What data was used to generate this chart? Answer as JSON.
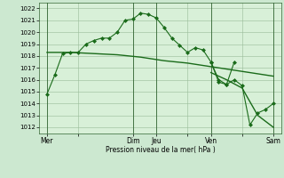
{
  "background_color": "#cce8d0",
  "plot_bg": "#d8f0d8",
  "grid_color": "#99bb99",
  "line_color": "#1a6b1a",
  "marker_color": "#1a6b1a",
  "ylim": [
    1011.5,
    1022.5
  ],
  "yticks": [
    1012,
    1013,
    1014,
    1015,
    1016,
    1017,
    1018,
    1019,
    1020,
    1021,
    1022
  ],
  "xlabel": "Pression niveau de la mer( hPa )",
  "day_labels": [
    "Mer",
    "",
    "Dim",
    "Jeu",
    "",
    "Ven",
    "",
    "Sam"
  ],
  "day_positions": [
    0.5,
    2.5,
    6.0,
    7.5,
    9.5,
    11.0,
    13.0,
    15.0
  ],
  "vline_positions": [
    0.5,
    6.0,
    7.5,
    11.0,
    15.0
  ],
  "series1_x": [
    0.5,
    1.0,
    1.5,
    2.0,
    2.5,
    3.0,
    3.5,
    4.0,
    4.5,
    5.0,
    5.5,
    6.0,
    6.5,
    7.0,
    7.5,
    8.0,
    8.5,
    9.0,
    9.5,
    10.0,
    10.5,
    11.0,
    11.5,
    12.0,
    12.5
  ],
  "series1_y": [
    1014.8,
    1016.4,
    1018.2,
    1018.3,
    1018.3,
    1019.0,
    1019.3,
    1019.5,
    1019.5,
    1020.0,
    1021.0,
    1021.1,
    1021.6,
    1021.5,
    1021.2,
    1020.4,
    1019.5,
    1018.9,
    1018.3,
    1018.7,
    1018.5,
    1017.5,
    1016.0,
    1015.6,
    1017.5
  ],
  "series2_x": [
    0.5,
    2.0,
    3.5,
    5.0,
    6.5,
    8.0,
    9.5,
    11.0,
    12.5,
    14.0,
    15.0
  ],
  "series2_y": [
    1018.3,
    1018.3,
    1018.2,
    1018.1,
    1017.9,
    1017.6,
    1017.4,
    1017.1,
    1016.8,
    1016.5,
    1016.3
  ],
  "series3_x": [
    11.0,
    11.5,
    12.0,
    12.5,
    13.0,
    13.5,
    14.0,
    14.5,
    15.0
  ],
  "series3_y": [
    1017.5,
    1015.8,
    1015.6,
    1016.0,
    1015.5,
    1012.2,
    1013.2,
    1013.5,
    1014.0
  ],
  "series4_x": [
    11.0,
    12.0,
    13.0,
    14.0,
    15.0
  ],
  "series4_y": [
    1016.6,
    1016.0,
    1015.3,
    1013.0,
    1012.0
  ],
  "xlim": [
    0.0,
    15.5
  ],
  "figsize": [
    3.2,
    2.0
  ],
  "dpi": 100
}
